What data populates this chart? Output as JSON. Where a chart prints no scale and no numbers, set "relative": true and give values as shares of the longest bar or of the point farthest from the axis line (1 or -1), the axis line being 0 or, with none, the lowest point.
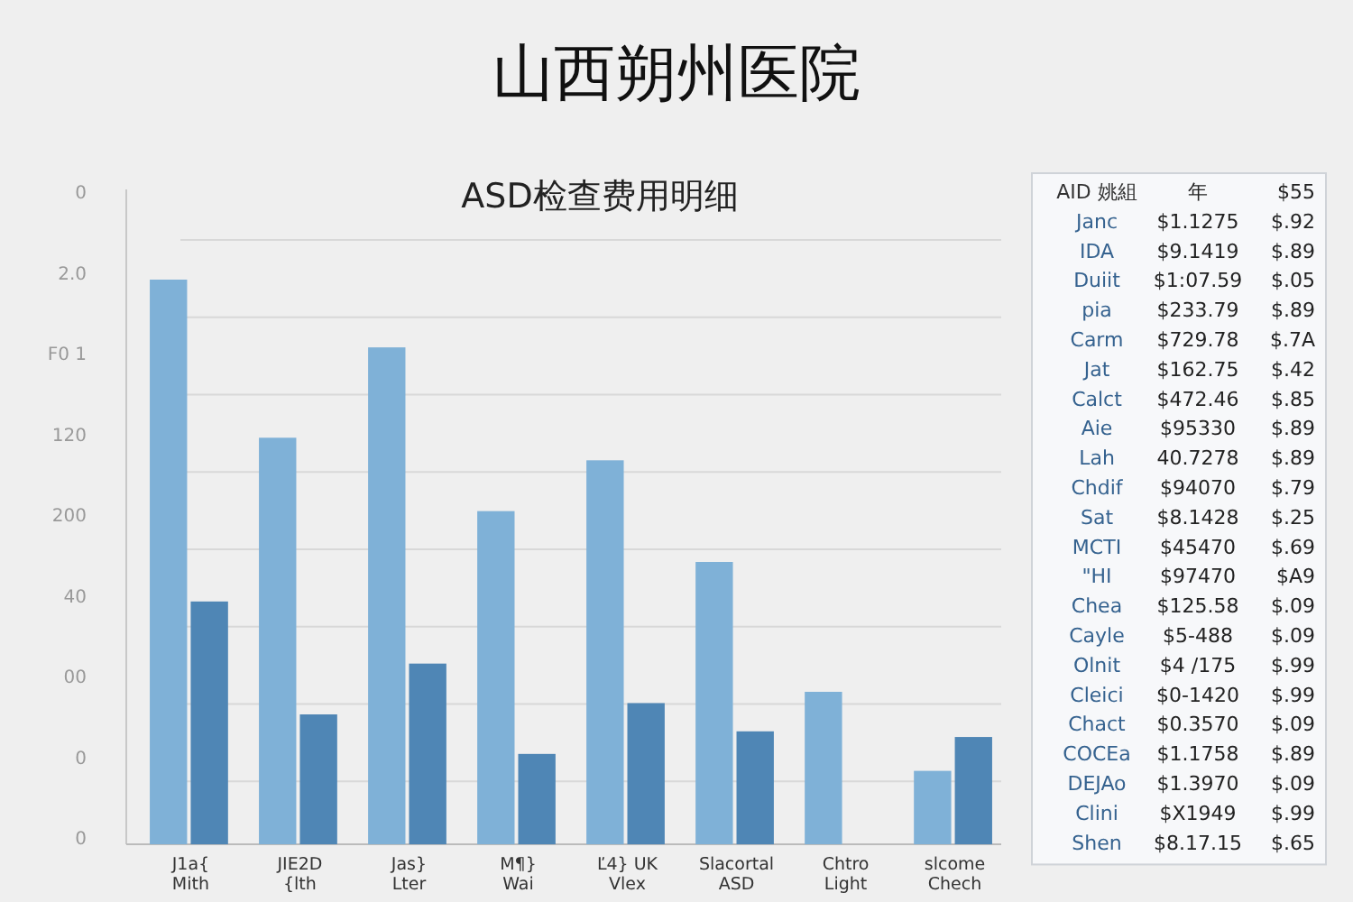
{
  "chart_data": [
    {
      "type": "bar",
      "title": "山西朔州医院",
      "subtitle": "ASD检查费用明细",
      "relative": true,
      "grid": true,
      "categories": [
        "J1a{ Mith",
        "JIE2D {lth",
        "Jas} Lter",
        "M¶} Wai",
        "Ľ4} UK Vlex",
        "Slacortal ASD",
        "Chtro Light",
        "slcome Chech"
      ],
      "series": [
        {
          "color": "#7fb1d7",
          "values": [
            1,
            0.72,
            0.88,
            0.59,
            0.68,
            0.5,
            0.27,
            0.13
          ]
        },
        {
          "color": "#4f86b5",
          "values": [
            0.43,
            0.23,
            0.32,
            0.16,
            0.25,
            0.2,
            null,
            0.19
          ]
        }
      ],
      "annotations": [
        "0",
        "2.0",
        "F0 1",
        "120",
        "200",
        "40",
        "00",
        "0",
        "0"
      ]
    },
    {
      "type": "other",
      "annotations": [
        "AID 姚組  年  $55",
        "Janc  $1.1275  $.92",
        "IDA  $9.1419  $.89",
        "Duiit  $1:07.59  $.05",
        "pia  $233.79  $.89",
        "Carm  $729.78  $.7A",
        "Jat  $162.75  $.42",
        "Calct  $472.46  $.85",
        "Aie  $95330  $.89",
        "Lah  40.7278  $.89",
        "Chdif  $94070  $.79",
        "Sat  $8.1428  $.25",
        "MCTI  $45470  $.69",
        "\"HI  $97470  $A9",
        "Chea  $125.58  $.09",
        "Cayle  $5-488  $.09",
        "Olnit  $4 /175  $.99",
        "Cleici  $0-1420  $.99",
        "Chact  $0.3570  $.09",
        "COCEa  $1.1758  $.89",
        "DEJAo  $1.3970  $.09",
        "Clini  $X1949  $.99",
        "Shen  $8.17.15  $.65"
      ]
    }
  ]
}
